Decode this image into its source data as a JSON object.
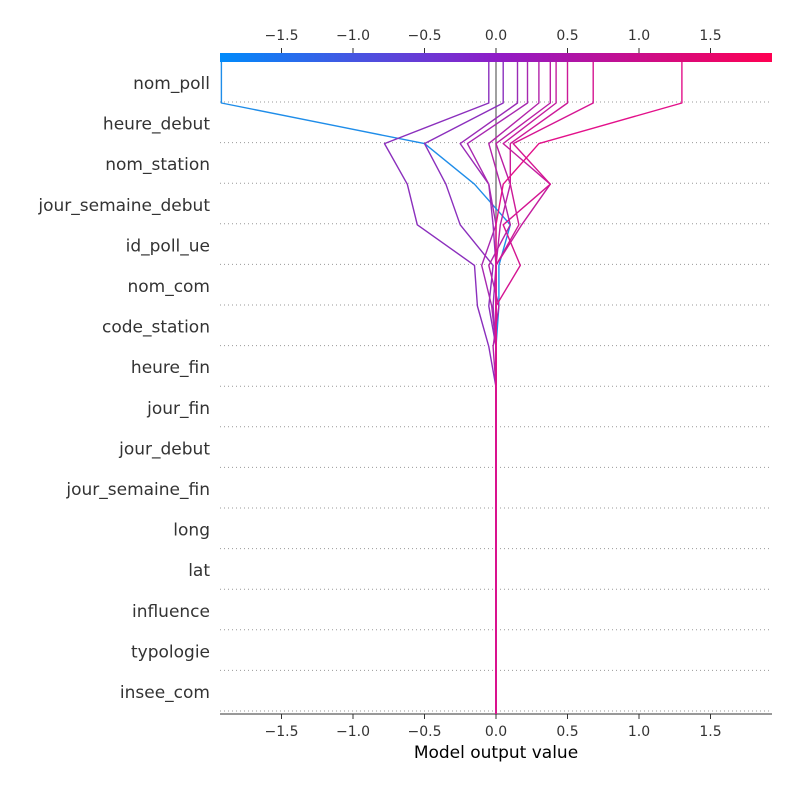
{
  "chart_data": {
    "type": "decision",
    "xlabel": "Model output value",
    "xlim": [
      -1.93,
      1.93
    ],
    "xticks": [
      -1.5,
      -1.0,
      -0.5,
      0.0,
      0.5,
      1.0,
      1.5
    ],
    "xtick_labels": [
      "−1.5",
      "−1.0",
      "−0.5",
      "0.0",
      "0.5",
      "1.0",
      "1.5"
    ],
    "base_value": 0.0,
    "features": [
      "nom_poll",
      "heure_debut",
      "nom_station",
      "jour_semaine_debut",
      "id_poll_ue",
      "nom_com",
      "code_station",
      "heure_fin",
      "jour_fin",
      "jour_debut",
      "jour_semaine_fin",
      "long",
      "lat",
      "influence",
      "typologie",
      "insee_com"
    ],
    "colormap": [
      "#008bfb",
      "#ff0052"
    ],
    "series": [
      {
        "color": "#1f8de9",
        "values": [
          -1.92,
          -0.5,
          -0.15,
          0.1,
          0.02,
          0.02,
          0.0
        ]
      },
      {
        "color": "#8b2fbd",
        "values": [
          -0.05,
          -0.78,
          -0.62,
          -0.55,
          -0.15,
          -0.13,
          -0.05
        ]
      },
      {
        "color": "#8b2fbd",
        "values": [
          0.05,
          -0.5,
          -0.35,
          -0.25,
          -0.02,
          -0.05,
          0.0
        ]
      },
      {
        "color": "#9a2bb6",
        "values": [
          0.15,
          -0.25,
          -0.05,
          -0.02,
          0.0,
          -0.02,
          0.0
        ]
      },
      {
        "color": "#a828b0",
        "values": [
          0.22,
          -0.2,
          -0.05,
          0.0,
          -0.1,
          -0.03,
          0.0
        ]
      },
      {
        "color": "#b223a9",
        "values": [
          0.3,
          -0.05,
          0.03,
          0.1,
          -0.05,
          0.02,
          -0.02
        ]
      },
      {
        "color": "#bb1fa4",
        "values": [
          0.38,
          0.0,
          0.1,
          0.03,
          0.0,
          0.0,
          0.0
        ]
      },
      {
        "color": "#c41d9e",
        "values": [
          0.42,
          0.05,
          0.38,
          0.18,
          0.0,
          0.0,
          0.0
        ]
      },
      {
        "color": "#cc1a98",
        "values": [
          0.5,
          0.1,
          0.1,
          0.16,
          0.0,
          0.0,
          0.0
        ]
      },
      {
        "color": "#d51592",
        "values": [
          0.68,
          0.12,
          0.38,
          0.05,
          0.17,
          0.0,
          0.0
        ]
      },
      {
        "color": "#e3108a",
        "values": [
          1.3,
          0.3,
          0.05,
          0.0,
          0.0,
          0.0,
          0.0
        ]
      }
    ]
  }
}
